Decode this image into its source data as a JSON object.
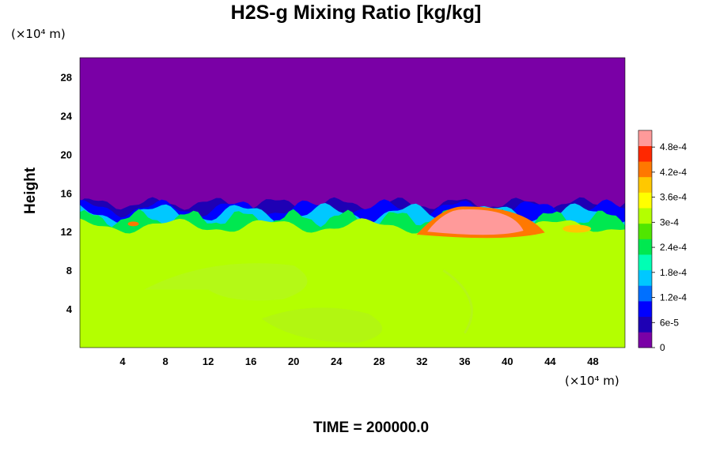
{
  "chart_data": {
    "type": "heatmap",
    "title": "H2S-g Mixing Ratio [kg/kg]",
    "ylabel": "Height",
    "xunit": "(×10⁴ m)",
    "yunit": "(×10⁴ m)",
    "footer": "TIME = 200000.0",
    "xlim": [
      0,
      51
    ],
    "ylim": [
      0,
      30
    ],
    "xticks": [
      4,
      8,
      12,
      16,
      20,
      24,
      28,
      32,
      36,
      40,
      44,
      48
    ],
    "yticks": [
      4,
      8,
      12,
      16,
      20,
      24,
      28
    ],
    "colorbar": {
      "ticks": [
        {
          "value": 0,
          "label": "0"
        },
        {
          "value": 6e-05,
          "label": "6e-5"
        },
        {
          "value": 0.00012,
          "label": "1.2e-4"
        },
        {
          "value": 0.00018,
          "label": "1.8e-4"
        },
        {
          "value": 0.00024,
          "label": "2.4e-4"
        },
        {
          "value": 0.0003,
          "label": "3e-4"
        },
        {
          "value": 0.00036,
          "label": "3.6e-4"
        },
        {
          "value": 0.00042,
          "label": "4.2e-4"
        },
        {
          "value": 0.00048,
          "label": "4.8e-4"
        }
      ],
      "range": [
        0,
        0.00052
      ],
      "colors": [
        "#7a00a6",
        "#1e00b4",
        "#0000ff",
        "#0070ff",
        "#00c8ff",
        "#00ffb4",
        "#00e850",
        "#50e600",
        "#b4ff00",
        "#ffff00",
        "#ffc800",
        "#ff7800",
        "#ff2800",
        "#ff9a9a"
      ]
    },
    "regions": {
      "upper_layer_value": 0,
      "lower_layer_value": 0.00033,
      "interface_height": 14,
      "plume_value": 0.00052,
      "plume_x_range": [
        33,
        39
      ],
      "plume_y_range": [
        11.5,
        14
      ]
    }
  }
}
